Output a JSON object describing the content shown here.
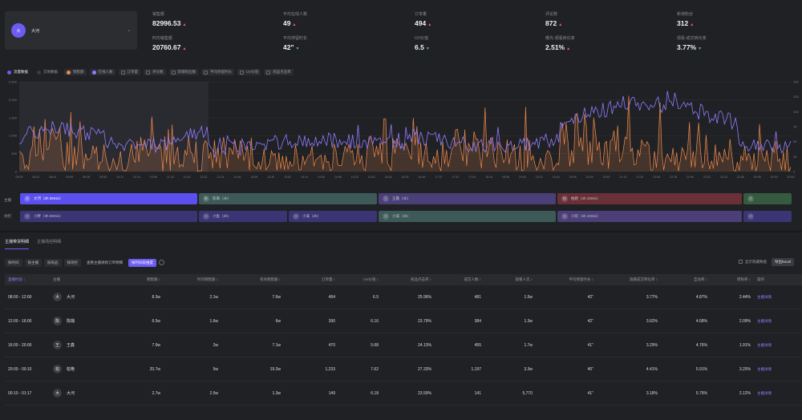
{
  "anchor_selector": {
    "avatar_text": "大",
    "name": "大河",
    "caret": "⌄"
  },
  "stats": [
    {
      "label": "销售额",
      "value": "82996.53",
      "trend": "up"
    },
    {
      "label": "平均在线人数",
      "value": "49",
      "trend": "up"
    },
    {
      "label": "订单量",
      "value": "494",
      "trend": "up"
    },
    {
      "label": "评论数",
      "value": "872",
      "trend": "up"
    },
    {
      "label": "新增粉丝",
      "value": "312",
      "trend": "up"
    },
    {
      "label": "时均销售额",
      "value": "20760.67",
      "trend": "up"
    },
    {
      "label": "平均停留时长",
      "value": "42\"",
      "trend": "down"
    },
    {
      "label": "UV价值",
      "value": "6.5",
      "trend": "down"
    },
    {
      "label": "曝光-观看转化率",
      "value": "2.51%",
      "trend": "up"
    },
    {
      "label": "观看-成交转化率",
      "value": "3.77%",
      "trend": "down"
    }
  ],
  "legend": {
    "tab_active": "流量数据",
    "tab_inactive": "交易数据",
    "items": [
      {
        "label": "销售额",
        "color": "#f08a4b",
        "on": true
      },
      {
        "label": "在线人数",
        "color": "#8f7cff",
        "on": true
      },
      {
        "label": "订单量",
        "on": false
      },
      {
        "label": "评论数",
        "on": false
      },
      {
        "label": "新增粉丝数",
        "on": false
      },
      {
        "label": "平均停留时长",
        "on": false
      },
      {
        "label": "UV价值",
        "on": false
      },
      {
        "label": "商品点击率",
        "on": false
      }
    ]
  },
  "chart_data": {
    "type": "line",
    "y_left_ticks": [
      "2,500",
      "2,000",
      "1,500",
      "1,000",
      "500",
      "0"
    ],
    "y_right_ticks": [
      "150",
      "125",
      "100",
      "75",
      "50",
      "25",
      "0"
    ],
    "x_ticks": [
      "08:00",
      "08:22",
      "08:44",
      "09:06",
      "09:28",
      "09:50",
      "10:12",
      "10:34",
      "10:56",
      "11:18",
      "11:40",
      "12:02",
      "12:24",
      "12:46",
      "13:08",
      "13:30",
      "13:52",
      "14:14",
      "14:36",
      "14:58",
      "15:20",
      "15:42",
      "16:04",
      "16:26",
      "16:48",
      "17:10",
      "17:32",
      "17:54",
      "18:16",
      "18:38",
      "19:00",
      "19:22",
      "19:44",
      "20:06",
      "20:28",
      "20:50",
      "21:12",
      "21:34",
      "21:56",
      "22:18",
      "22:40",
      "23:02",
      "23:24",
      "23:46",
      "00:08",
      "00:30",
      "00:52"
    ],
    "series": [
      {
        "name": "销售额",
        "color": "#f08a4b",
        "axis": "left"
      },
      {
        "name": "在线人数",
        "color": "#8f7cff",
        "axis": "right"
      }
    ],
    "highlight_range": [
      0,
      0.245
    ]
  },
  "timeline": {
    "row1_label": "主播",
    "row2_label": "场控",
    "row1": [
      {
        "avatar": "大",
        "text": "大河（3h 59min）",
        "color": "#5b4ff0",
        "active": true
      },
      {
        "avatar": "陈",
        "text": "陈璐（4h）",
        "color": "#3d5a58"
      },
      {
        "avatar": "王",
        "text": "王鑫（4h）",
        "color": "#4b3f78"
      },
      {
        "avatar": "柏",
        "text": "柏艳（4h 10min）",
        "color": "#6a3038"
      },
      {
        "avatar": "大",
        "text": "",
        "color": "#355a3f"
      }
    ],
    "row2": [
      {
        "avatar": "小",
        "text": "小胖（3h 59min）",
        "color": "#3b3575"
      },
      {
        "avatar": "小",
        "text": "小鱼（2h）",
        "color": "#3b3575"
      },
      {
        "avatar": "小",
        "text": "小溪（2h）",
        "color": "#3b3575"
      },
      {
        "avatar": "小",
        "text": "小溪（4h）",
        "color": "#3d5a58"
      },
      {
        "avatar": "小",
        "text": "小欢（4h 10min）",
        "color": "#4b3f78"
      },
      {
        "avatar": "小",
        "text": "",
        "color": "#3b3575"
      }
    ]
  },
  "subtabs": [
    "主播带货明细",
    "主播场控明细"
  ],
  "toolbar": {
    "buttons": [
      "按时间",
      "按主播",
      "按商品",
      "按场控",
      "查看主播讲款订单明细",
      "按时间段维度"
    ],
    "active_index": 5,
    "show_hidden": "显示隐藏数据",
    "export": "导出Excel"
  },
  "table": {
    "headers": [
      "直播时段 ↓",
      "主播",
      "销售额 ↕",
      "时均销售额 ↕",
      "有效销售额 ↕",
      "订单量 ↕",
      "UV价值 ↕",
      "商品点击率 ↕",
      "成交人数 ↕",
      "观看人次 ↕",
      "平均停留时长 ↕",
      "观看成交转化率 ↕",
      "互动率 ↕",
      "转粉率 ↕",
      "操作"
    ],
    "rows": [
      {
        "time": "08:00 - 12:00",
        "av": "大",
        "name": "大河",
        "sales": "8.3w",
        "hourly": "2.1w",
        "valid": "7.6w",
        "orders": "494",
        "uv": "6.5",
        "ctr": "25.96%",
        "buyers": "481",
        "views": "1.5w",
        "stay": "42\"",
        "conv": "3.77%",
        "interact": "4.87%",
        "fans": "2.44%",
        "op": "主播详情"
      },
      {
        "time": "12:00 - 16:00",
        "av": "陈",
        "name": "陈璐",
        "sales": "6.5w",
        "hourly": "1.6w",
        "valid": "6w",
        "orders": "390",
        "uv": "6.16",
        "ctr": "23.79%",
        "buyers": "384",
        "views": "1.3w",
        "stay": "42\"",
        "conv": "3.62%",
        "interact": "4.68%",
        "fans": "2.09%",
        "op": "主播详情"
      },
      {
        "time": "16:00 - 20:00",
        "av": "王",
        "name": "王鑫",
        "sales": "7.9w",
        "hourly": "2w",
        "valid": "7.1w",
        "orders": "470",
        "uv": "5.68",
        "ctr": "24.13%",
        "buyers": "455",
        "views": "1.7w",
        "stay": "41\"",
        "conv": "3.29%",
        "interact": "4.76%",
        "fans": "1.91%",
        "op": "主播详情"
      },
      {
        "time": "20:00 - 00:10",
        "av": "柏",
        "name": "柏艳",
        "sales": "20.7w",
        "hourly": "5w",
        "valid": "19.2w",
        "orders": "1,233",
        "uv": "7.62",
        "ctr": "27.33%",
        "buyers": "1,197",
        "views": "3.3w",
        "stay": "40\"",
        "conv": "4.41%",
        "interact": "5.91%",
        "fans": "3.25%",
        "op": "主播详情"
      },
      {
        "time": "00:10 - 01:17",
        "av": "大",
        "name": "大河",
        "sales": "2.7w",
        "hourly": "2.5w",
        "valid": "1.3w",
        "orders": "149",
        "uv": "6.18",
        "ctr": "23.59%",
        "buyers": "141",
        "views": "5,770",
        "stay": "41\"",
        "conv": "3.18%",
        "interact": "5.79%",
        "fans": "2.12%",
        "op": "主播详情"
      }
    ]
  }
}
